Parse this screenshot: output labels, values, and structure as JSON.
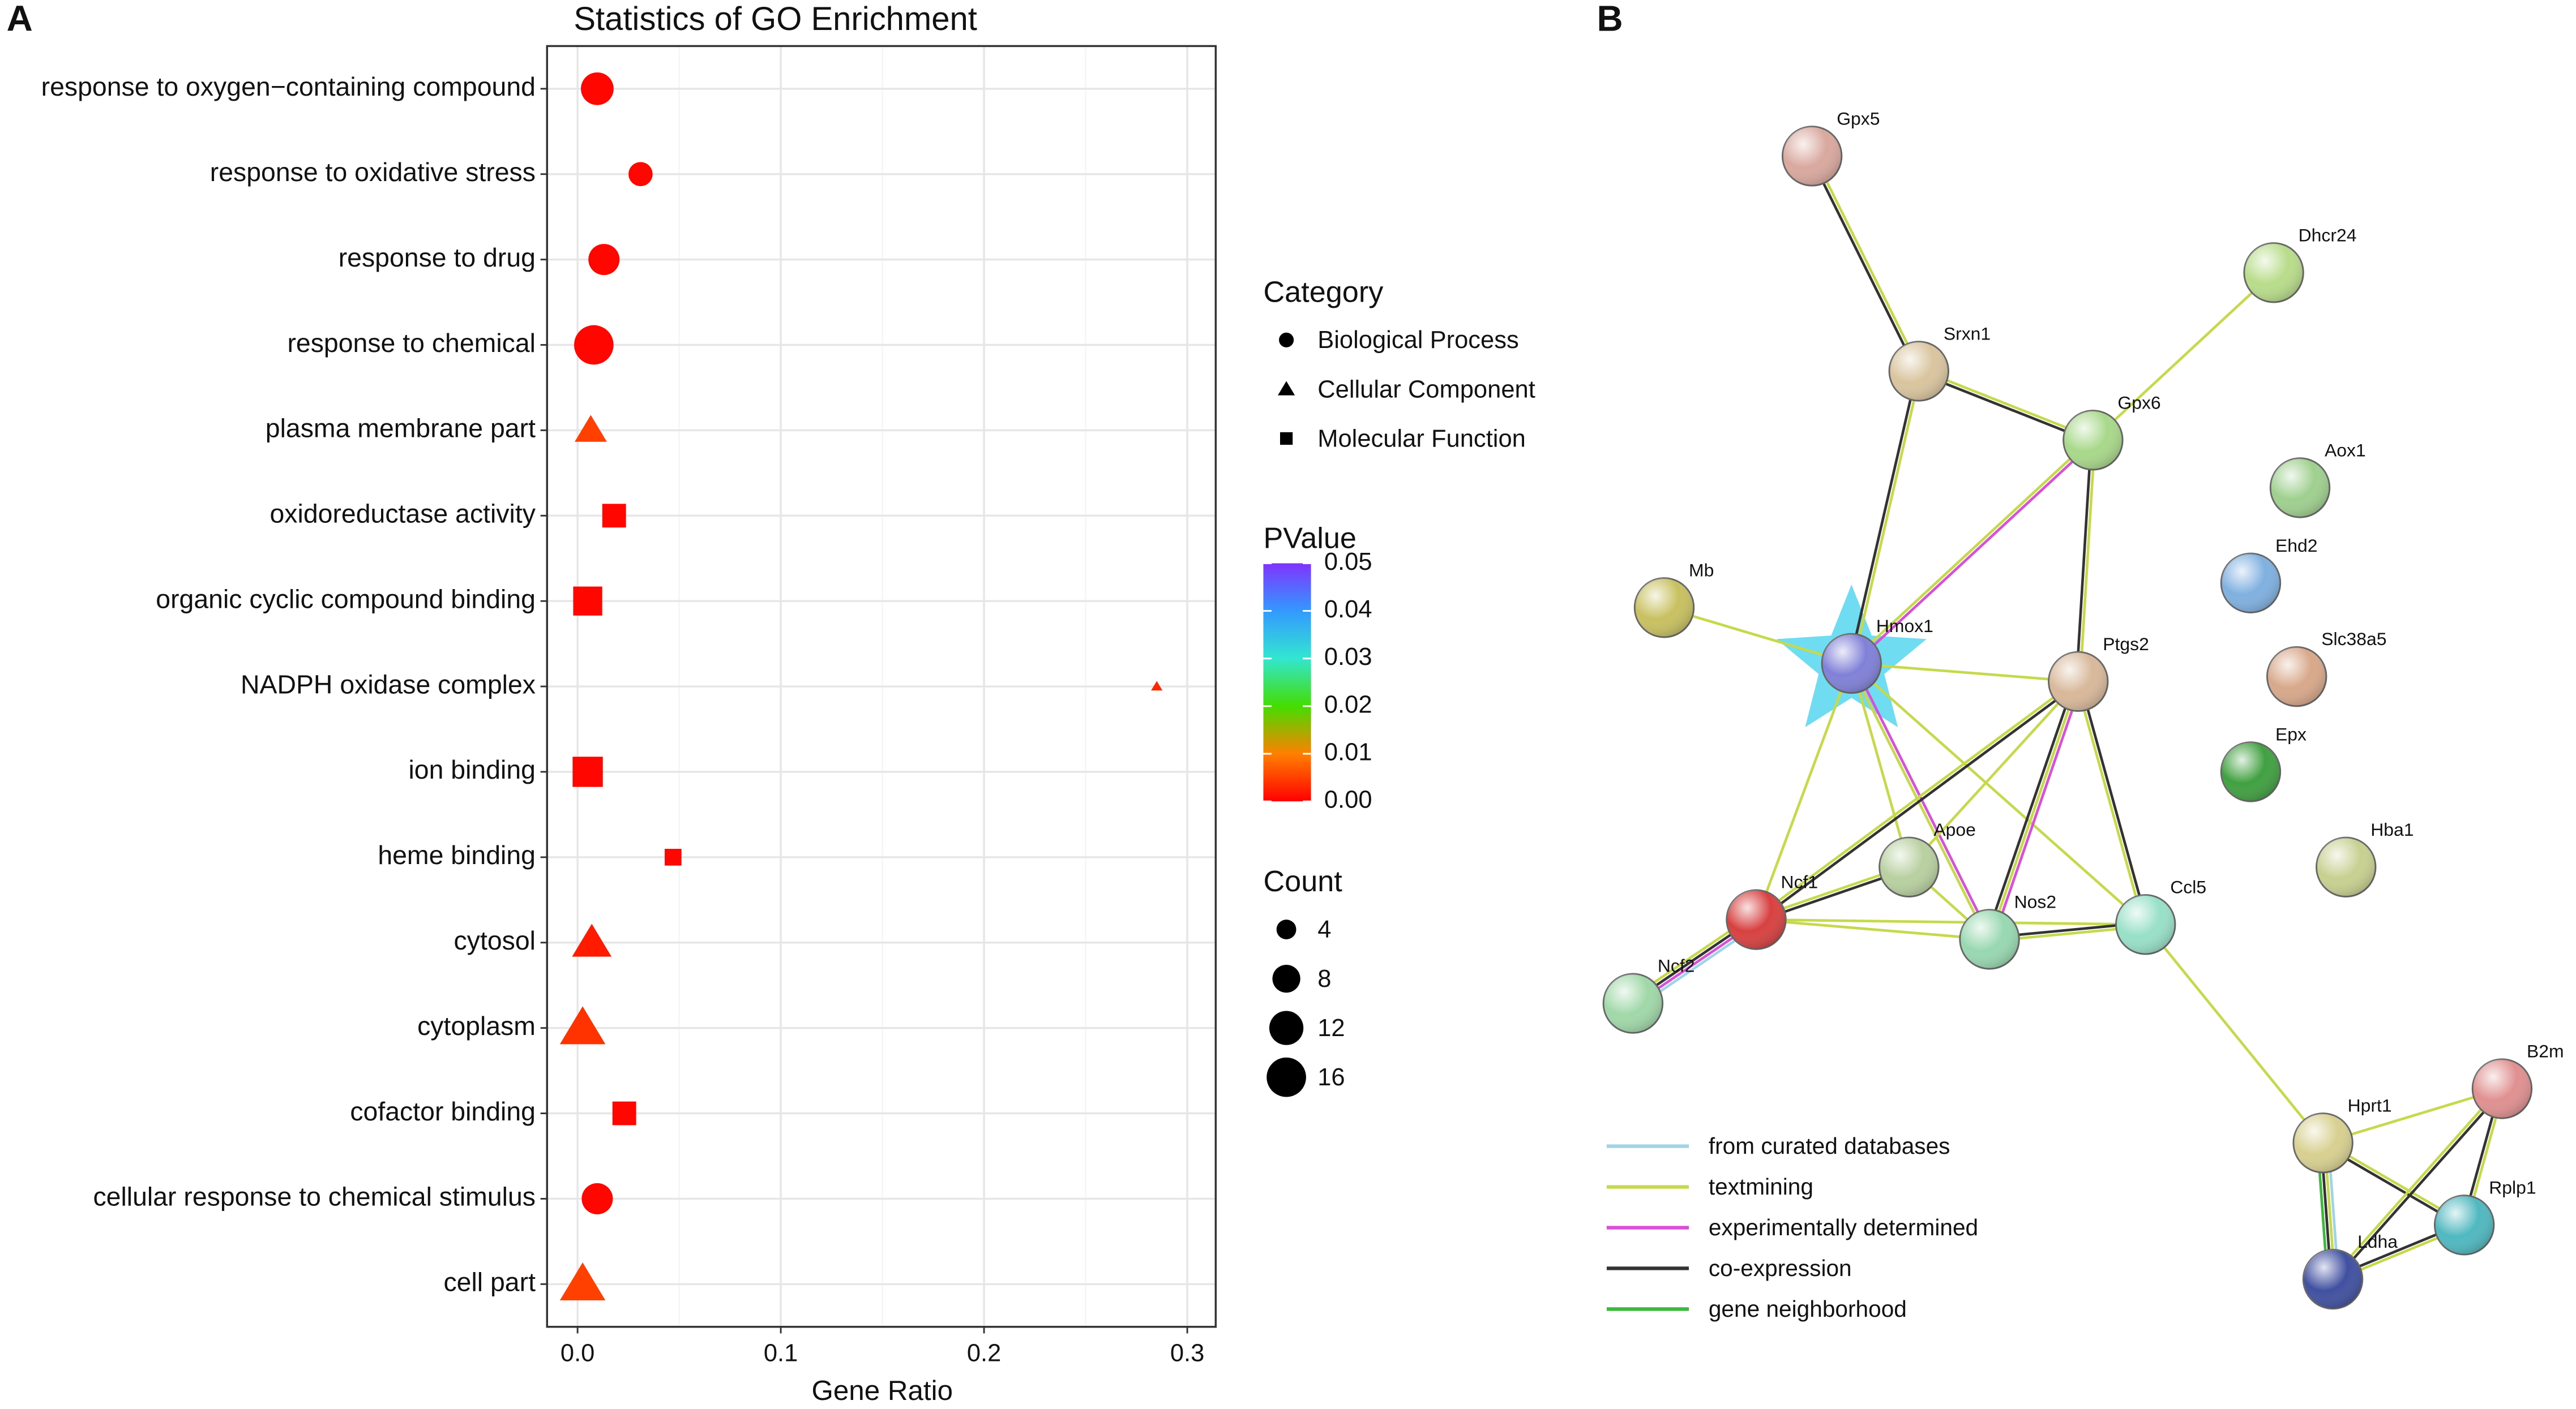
{
  "panel_labels": [
    "A",
    "B"
  ],
  "chart_data": {
    "type": "scatter",
    "title": "Statistics of GO Enrichment",
    "xlabel": "Gene Ratio",
    "categories": [
      "response to oxygen−containing compound",
      "response to oxidative stress",
      "response to drug",
      "response to chemical",
      "plasma membrane part",
      "oxidoreductase activity",
      "organic cyclic compound binding",
      "NADPH oxidase complex",
      "ion binding",
      "heme binding",
      "cytosol",
      "cytoplasm",
      "cofactor binding",
      "cellular response to chemical stimulus",
      "cell part"
    ],
    "values": [
      0.0097,
      0.031,
      0.013,
      0.008,
      0.0065,
      0.018,
      0.005,
      0.285,
      0.005,
      0.047,
      0.007,
      0.0025,
      0.023,
      0.0097,
      0.0025
    ],
    "counts": [
      11,
      6,
      10,
      16,
      8,
      8,
      12,
      1,
      13,
      4,
      12,
      16,
      8,
      10,
      16
    ],
    "pvalues": [
      0.0005,
      0.0005,
      0.0005,
      0.0005,
      0.005,
      0.0005,
      0.0005,
      0.003,
      0.0005,
      0.0005,
      0.002,
      0.004,
      0.0005,
      0.0005,
      0.005
    ],
    "groups": [
      "Biological Process",
      "Biological Process",
      "Biological Process",
      "Biological Process",
      "Cellular Component",
      "Molecular Function",
      "Molecular Function",
      "Cellular Component",
      "Molecular Function",
      "Molecular Function",
      "Cellular Component",
      "Cellular Component",
      "Molecular Function",
      "Biological Process",
      "Cellular Component"
    ],
    "xlim": [
      -0.015,
      0.314
    ],
    "xticks": [
      {
        "value": 0,
        "label": "0.0"
      },
      0.1,
      0.2,
      0.3
    ],
    "minor_xticks": [
      0.05,
      0.15,
      0.25
    ],
    "grid": true,
    "category_legend": {
      "title": "Category",
      "items": [
        {
          "name": "Biological Process",
          "shape": "circle"
        },
        {
          "name": "Cellular Component",
          "shape": "triangle"
        },
        {
          "name": "Molecular Function",
          "shape": "square"
        }
      ]
    },
    "color_legend": {
      "title": "PValue",
      "lim": [
        0,
        0.05
      ],
      "colorscale": [
        "#ff0000",
        "#ff8000",
        "#44dd00",
        "#33e6d0",
        "#3399ff",
        "#8033ff"
      ],
      "ticks": [
        {
          "value": 0.05,
          "label": "0.05"
        },
        {
          "value": 0.04,
          "label": "0.04"
        },
        {
          "value": 0.03,
          "label": "0.03"
        },
        {
          "value": 0.02,
          "label": "0.02"
        },
        {
          "value": 0.01,
          "label": "0.01"
        },
        {
          "value": 0,
          "label": "0.00"
        }
      ]
    },
    "size_legend": {
      "title": "Count",
      "values": [
        4,
        8,
        12,
        16
      ]
    }
  },
  "network": {
    "nodes": [
      {
        "label": "Gpx5",
        "color": "#d9a89e"
      },
      {
        "label": "Dhcr24",
        "color": "#b8dc8a"
      },
      {
        "label": "Srxn1",
        "color": "#d9c49e"
      },
      {
        "label": "Gpx6",
        "color": "#a8d88a"
      },
      {
        "label": "Aox1",
        "color": "#9fd08f"
      },
      {
        "label": "Ehd2",
        "color": "#7fb0e0"
      },
      {
        "label": "Mb",
        "color": "#c8c060"
      },
      {
        "label": "Hmox1",
        "color": "#8080d8"
      },
      {
        "label": "Ptgs2",
        "color": "#d8b89a"
      },
      {
        "label": "Slc38a5",
        "color": "#d8a88a"
      },
      {
        "label": "Epx",
        "color": "#40a040"
      },
      {
        "label": "Hba1",
        "color": "#c8d090"
      },
      {
        "label": "Apoe",
        "color": "#b8d0a0"
      },
      {
        "label": "Ncf1",
        "color": "#d84040"
      },
      {
        "label": "Nos2",
        "color": "#98d8b0"
      },
      {
        "label": "Ccl5",
        "color": "#98e0c8"
      },
      {
        "label": "Ncf2",
        "color": "#a0d8a8"
      },
      {
        "label": "Hprt1",
        "color": "#d8d090"
      },
      {
        "label": "B2m",
        "color": "#e09090"
      },
      {
        "label": "Rplp1",
        "color": "#50b8c0"
      },
      {
        "label": "Ldha",
        "color": "#4050a0"
      }
    ],
    "edges": [
      {
        "from": "Gpx5",
        "to": "Srxn1",
        "evidence": [
          "textmining",
          "co-expression"
        ]
      },
      {
        "from": "Srxn1",
        "to": "Gpx6",
        "evidence": [
          "textmining",
          "co-expression"
        ]
      },
      {
        "from": "Dhcr24",
        "to": "Gpx6",
        "evidence": [
          "textmining"
        ]
      },
      {
        "from": "Srxn1",
        "to": "Hmox1",
        "evidence": [
          "textmining",
          "co-expression"
        ]
      },
      {
        "from": "Gpx6",
        "to": "Hmox1",
        "evidence": [
          "experimentally determined",
          "textmining"
        ]
      },
      {
        "from": "Gpx6",
        "to": "Ptgs2",
        "evidence": [
          "textmining",
          "co-expression"
        ]
      },
      {
        "from": "Mb",
        "to": "Hmox1",
        "evidence": [
          "textmining"
        ]
      },
      {
        "from": "Hmox1",
        "to": "Ptgs2",
        "evidence": [
          "textmining"
        ]
      },
      {
        "from": "Hmox1",
        "to": "Apoe",
        "evidence": [
          "textmining"
        ]
      },
      {
        "from": "Hmox1",
        "to": "Nos2",
        "evidence": [
          "experimentally determined",
          "textmining"
        ]
      },
      {
        "from": "Hmox1",
        "to": "Ncf1",
        "evidence": [
          "textmining"
        ]
      },
      {
        "from": "Hmox1",
        "to": "Ccl5",
        "evidence": [
          "textmining"
        ]
      },
      {
        "from": "Ptgs2",
        "to": "Ncf1",
        "evidence": [
          "co-expression",
          "textmining"
        ]
      },
      {
        "from": "Ptgs2",
        "to": "Apoe",
        "evidence": [
          "textmining"
        ]
      },
      {
        "from": "Ptgs2",
        "to": "Nos2",
        "evidence": [
          "experimentally determined",
          "textmining",
          "co-expression"
        ]
      },
      {
        "from": "Ptgs2",
        "to": "Ccl5",
        "evidence": [
          "co-expression",
          "textmining"
        ]
      },
      {
        "from": "Apoe",
        "to": "Ncf1",
        "evidence": [
          "co-expression",
          "textmining"
        ]
      },
      {
        "from": "Apoe",
        "to": "Nos2",
        "evidence": [
          "textmining"
        ]
      },
      {
        "from": "Ncf1",
        "to": "Nos2",
        "evidence": [
          "textmining"
        ]
      },
      {
        "from": "Ncf1",
        "to": "Ccl5",
        "evidence": [
          "textmining"
        ]
      },
      {
        "from": "Nos2",
        "to": "Ccl5",
        "evidence": [
          "co-expression",
          "textmining"
        ]
      },
      {
        "from": "Ncf1",
        "to": "Ncf2",
        "evidence": [
          "from curated databases",
          "experimentally determined",
          "co-expression",
          "textmining"
        ]
      },
      {
        "from": "Ccl5",
        "to": "Hprt1",
        "evidence": [
          "textmining"
        ]
      },
      {
        "from": "Hprt1",
        "to": "B2m",
        "evidence": [
          "textmining"
        ]
      },
      {
        "from": "Hprt1",
        "to": "Rplp1",
        "evidence": [
          "textmining",
          "co-expression"
        ]
      },
      {
        "from": "Hprt1",
        "to": "Ldha",
        "evidence": [
          "from curated databases",
          "textmining",
          "co-expression",
          "gene neighborhood"
        ]
      },
      {
        "from": "B2m",
        "to": "Rplp1",
        "evidence": [
          "textmining",
          "co-expression"
        ]
      },
      {
        "from": "B2m",
        "to": "Ldha",
        "evidence": [
          "co-expression",
          "textmining"
        ]
      },
      {
        "from": "Rplp1",
        "to": "Ldha",
        "evidence": [
          "textmining",
          "co-expression"
        ]
      }
    ],
    "legend": [
      {
        "name": "from curated databases",
        "color": "#9fd4e6"
      },
      {
        "name": "textmining",
        "color": "#c6d94a"
      },
      {
        "name": "experimentally determined",
        "color": "#d84fd8"
      },
      {
        "name": "co-expression",
        "color": "#333333"
      },
      {
        "name": "gene neighborhood",
        "color": "#3cb83c"
      }
    ]
  }
}
